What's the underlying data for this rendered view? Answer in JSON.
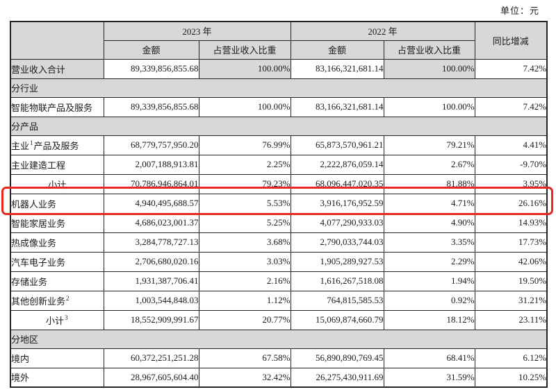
{
  "unit_label": "单位：元",
  "colors": {
    "shaded_cell": "#d8d8d8",
    "border": "#222222",
    "highlight_red": "#e8281e"
  },
  "highlight": {
    "color": "#e8281e",
    "target_row_label": "机器人业务"
  },
  "table": {
    "header": {
      "year_2023": "2023 年",
      "year_2022": "2022 年",
      "amount": "金额",
      "share": "占营业收入比重",
      "yoy": "同比增减"
    },
    "rows": [
      {
        "type": "data",
        "label": "营业收入合计",
        "values": [
          "89,339,856,855.68",
          "100.00%",
          "83,166,321,681.14",
          "100.00%",
          "7.42%"
        ]
      },
      {
        "type": "section",
        "label": "分行业"
      },
      {
        "type": "data",
        "label": "智能物联产品及服务",
        "values": [
          "89,339,856,855.68",
          "100.00%",
          "83,166,321,681.14",
          "100.00%",
          "7.42%"
        ]
      },
      {
        "type": "section",
        "label": "分产品"
      },
      {
        "type": "data",
        "label": "主业",
        "sup": "1",
        "label2": "产品及服务",
        "values": [
          "68,779,757,950.20",
          "76.99%",
          "65,873,570,961.21",
          "79.21%",
          "4.41%"
        ]
      },
      {
        "type": "data",
        "label": "主业建造工程",
        "values": [
          "2,007,188,913.81",
          "2.25%",
          "2,222,876,059.14",
          "2.67%",
          "-9.70%"
        ]
      },
      {
        "type": "data",
        "label": "小计",
        "values": [
          "70,786,946,864.01",
          "79.23%",
          "68,096,447,020.35",
          "81.88%",
          "3.95%"
        ]
      },
      {
        "type": "data",
        "label": "机器人业务",
        "values": [
          "4,940,495,688.57",
          "5.53%",
          "3,916,176,952.59",
          "4.71%",
          "26.16%"
        ]
      },
      {
        "type": "data",
        "label": "智能家居业务",
        "values": [
          "4,686,023,001.37",
          "5.25%",
          "4,077,290,933.03",
          "4.90%",
          "14.93%"
        ]
      },
      {
        "type": "data",
        "label": "热成像业务",
        "values": [
          "3,284,778,727.13",
          "3.68%",
          "2,790,033,744.03",
          "3.35%",
          "17.73%"
        ]
      },
      {
        "type": "data",
        "label": "汽车电子业务",
        "values": [
          "2,706,680,020.16",
          "3.03%",
          "1,905,289,927.53",
          "2.29%",
          "42.06%"
        ]
      },
      {
        "type": "data",
        "label": "存储业务",
        "values": [
          "1,931,387,706.41",
          "2.16%",
          "1,616,267,518.08",
          "1.94%",
          "19.50%"
        ]
      },
      {
        "type": "data",
        "label": "其他创新业务",
        "sup": "2",
        "values": [
          "1,003,544,848.03",
          "1.12%",
          "764,815,585.53",
          "0.92%",
          "31.21%"
        ]
      },
      {
        "type": "data",
        "label": "小计",
        "sup": "3",
        "values": [
          "18,552,909,991.67",
          "20.77%",
          "15,069,874,660.79",
          "18.12%",
          "23.11%"
        ]
      },
      {
        "type": "section",
        "label": "分地区"
      },
      {
        "type": "data",
        "label": "境内",
        "values": [
          "60,372,251,251.28",
          "67.58%",
          "56,890,890,769.45",
          "68.41%",
          "6.12%"
        ]
      },
      {
        "type": "data",
        "label": "境外",
        "values": [
          "28,967,605,604.40",
          "32.42%",
          "26,275,430,911.69",
          "31.59%",
          "10.25%"
        ]
      }
    ]
  }
}
